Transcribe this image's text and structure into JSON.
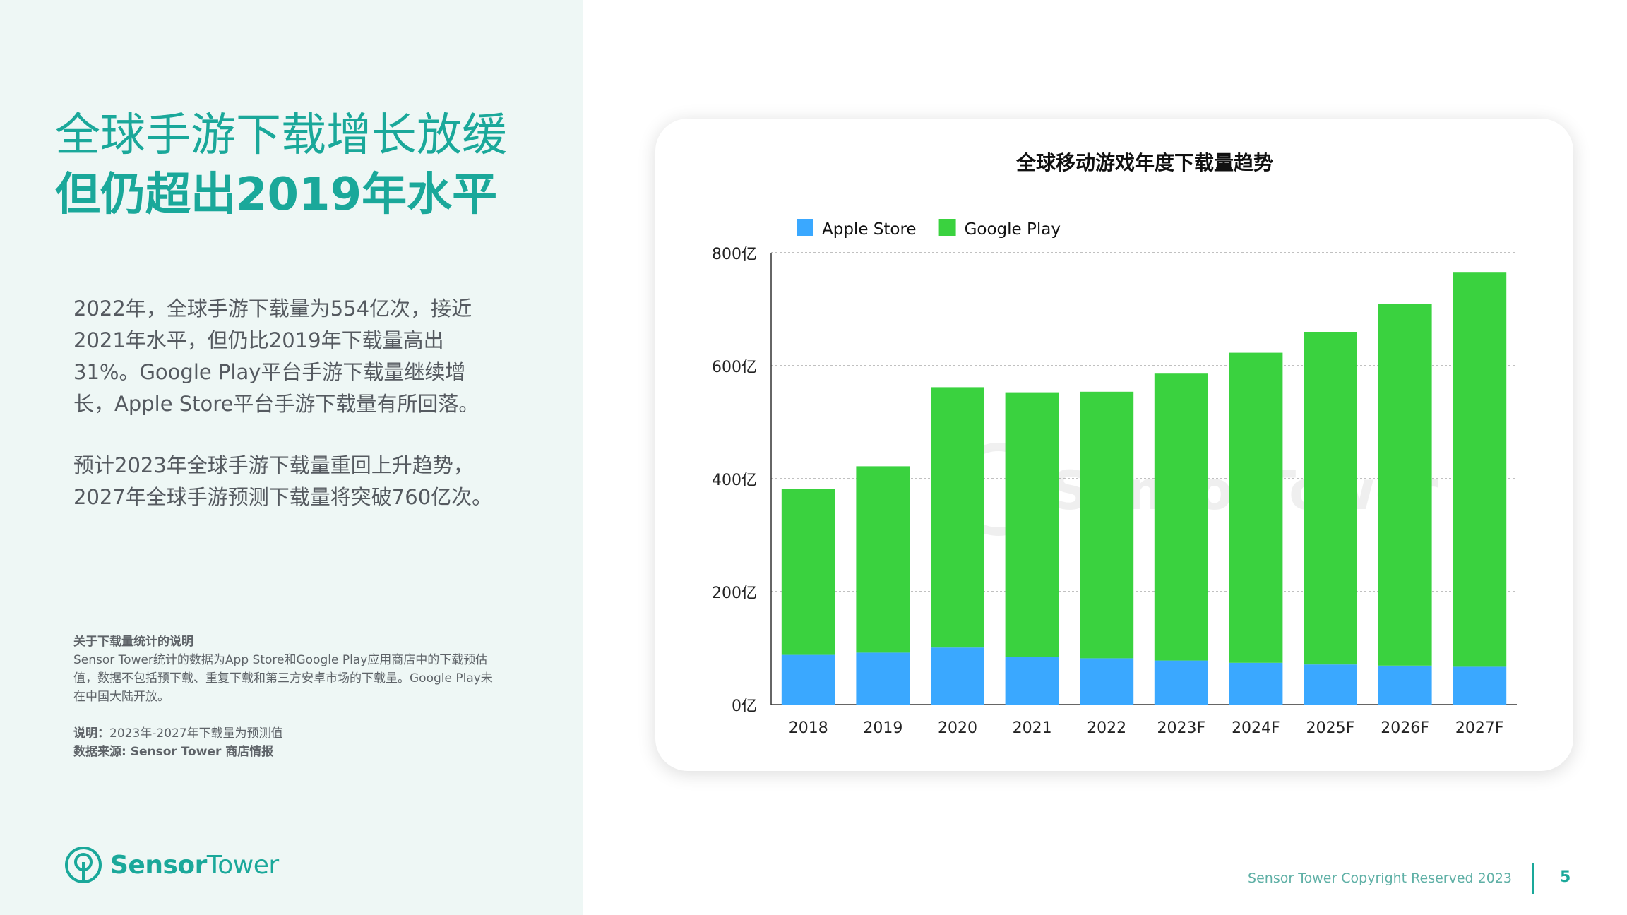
{
  "headline": {
    "line1": "全球手游下载增长放缓",
    "line2": "但仍超出2019年水平"
  },
  "paragraphs": [
    "2022年，全球手游下载量为554亿次，接近2021年水平，但仍比2019年下载量高出31%。Google  Play平台手游下载量继续增长，Apple Store平台手游下载量有所回落。",
    "预计2023年全球手游下载量重回上升趋势，2027年全球手游预测下载量将突破760亿次。"
  ],
  "notes": {
    "title": "关于下载量统计的说明",
    "body": "Sensor Tower统计的数据为App Store和Google Play应用商店中的下载预估值，数据不包括预下载、重复下载和第三方安卓市场的下载量。Google Play未在中国大陆开放。",
    "explanation_label": "说明：",
    "explanation": "2023年-2027年下载量为预测值",
    "source": "数据来源: Sensor Tower 商店情报"
  },
  "logo": {
    "word1": "Sensor",
    "word2": "Tower",
    "icon": "sensor-tower-logo-icon"
  },
  "footer": {
    "copyright": "Sensor Tower Copyright Reserved 2023",
    "page": "5"
  },
  "colors": {
    "accent": "#1aa89a",
    "apple": "#3aa8ff",
    "google": "#3ad23f"
  },
  "chart_data": {
    "type": "bar",
    "stacked": true,
    "title": "全球移动游戏年度下载量趋势",
    "categories": [
      "2018",
      "2019",
      "2020",
      "2021",
      "2022",
      "2023F",
      "2024F",
      "2025F",
      "2026F",
      "2027F"
    ],
    "series": [
      {
        "name": "Apple Store",
        "color": "#3aa8ff",
        "values": [
          88,
          92,
          101,
          85,
          82,
          78,
          74,
          71,
          69,
          67
        ]
      },
      {
        "name": "Google Play",
        "color": "#3ad23f",
        "values": [
          294,
          330,
          461,
          468,
          472,
          508,
          549,
          589,
          640,
          699
        ]
      }
    ],
    "ylim": [
      0,
      800
    ],
    "yticks": [
      0,
      200,
      400,
      600,
      800
    ],
    "ytick_labels": [
      "0亿",
      "200亿",
      "400亿",
      "600亿",
      "800亿"
    ],
    "grid": true,
    "legend": "top-left",
    "watermark": "SensorTower"
  }
}
